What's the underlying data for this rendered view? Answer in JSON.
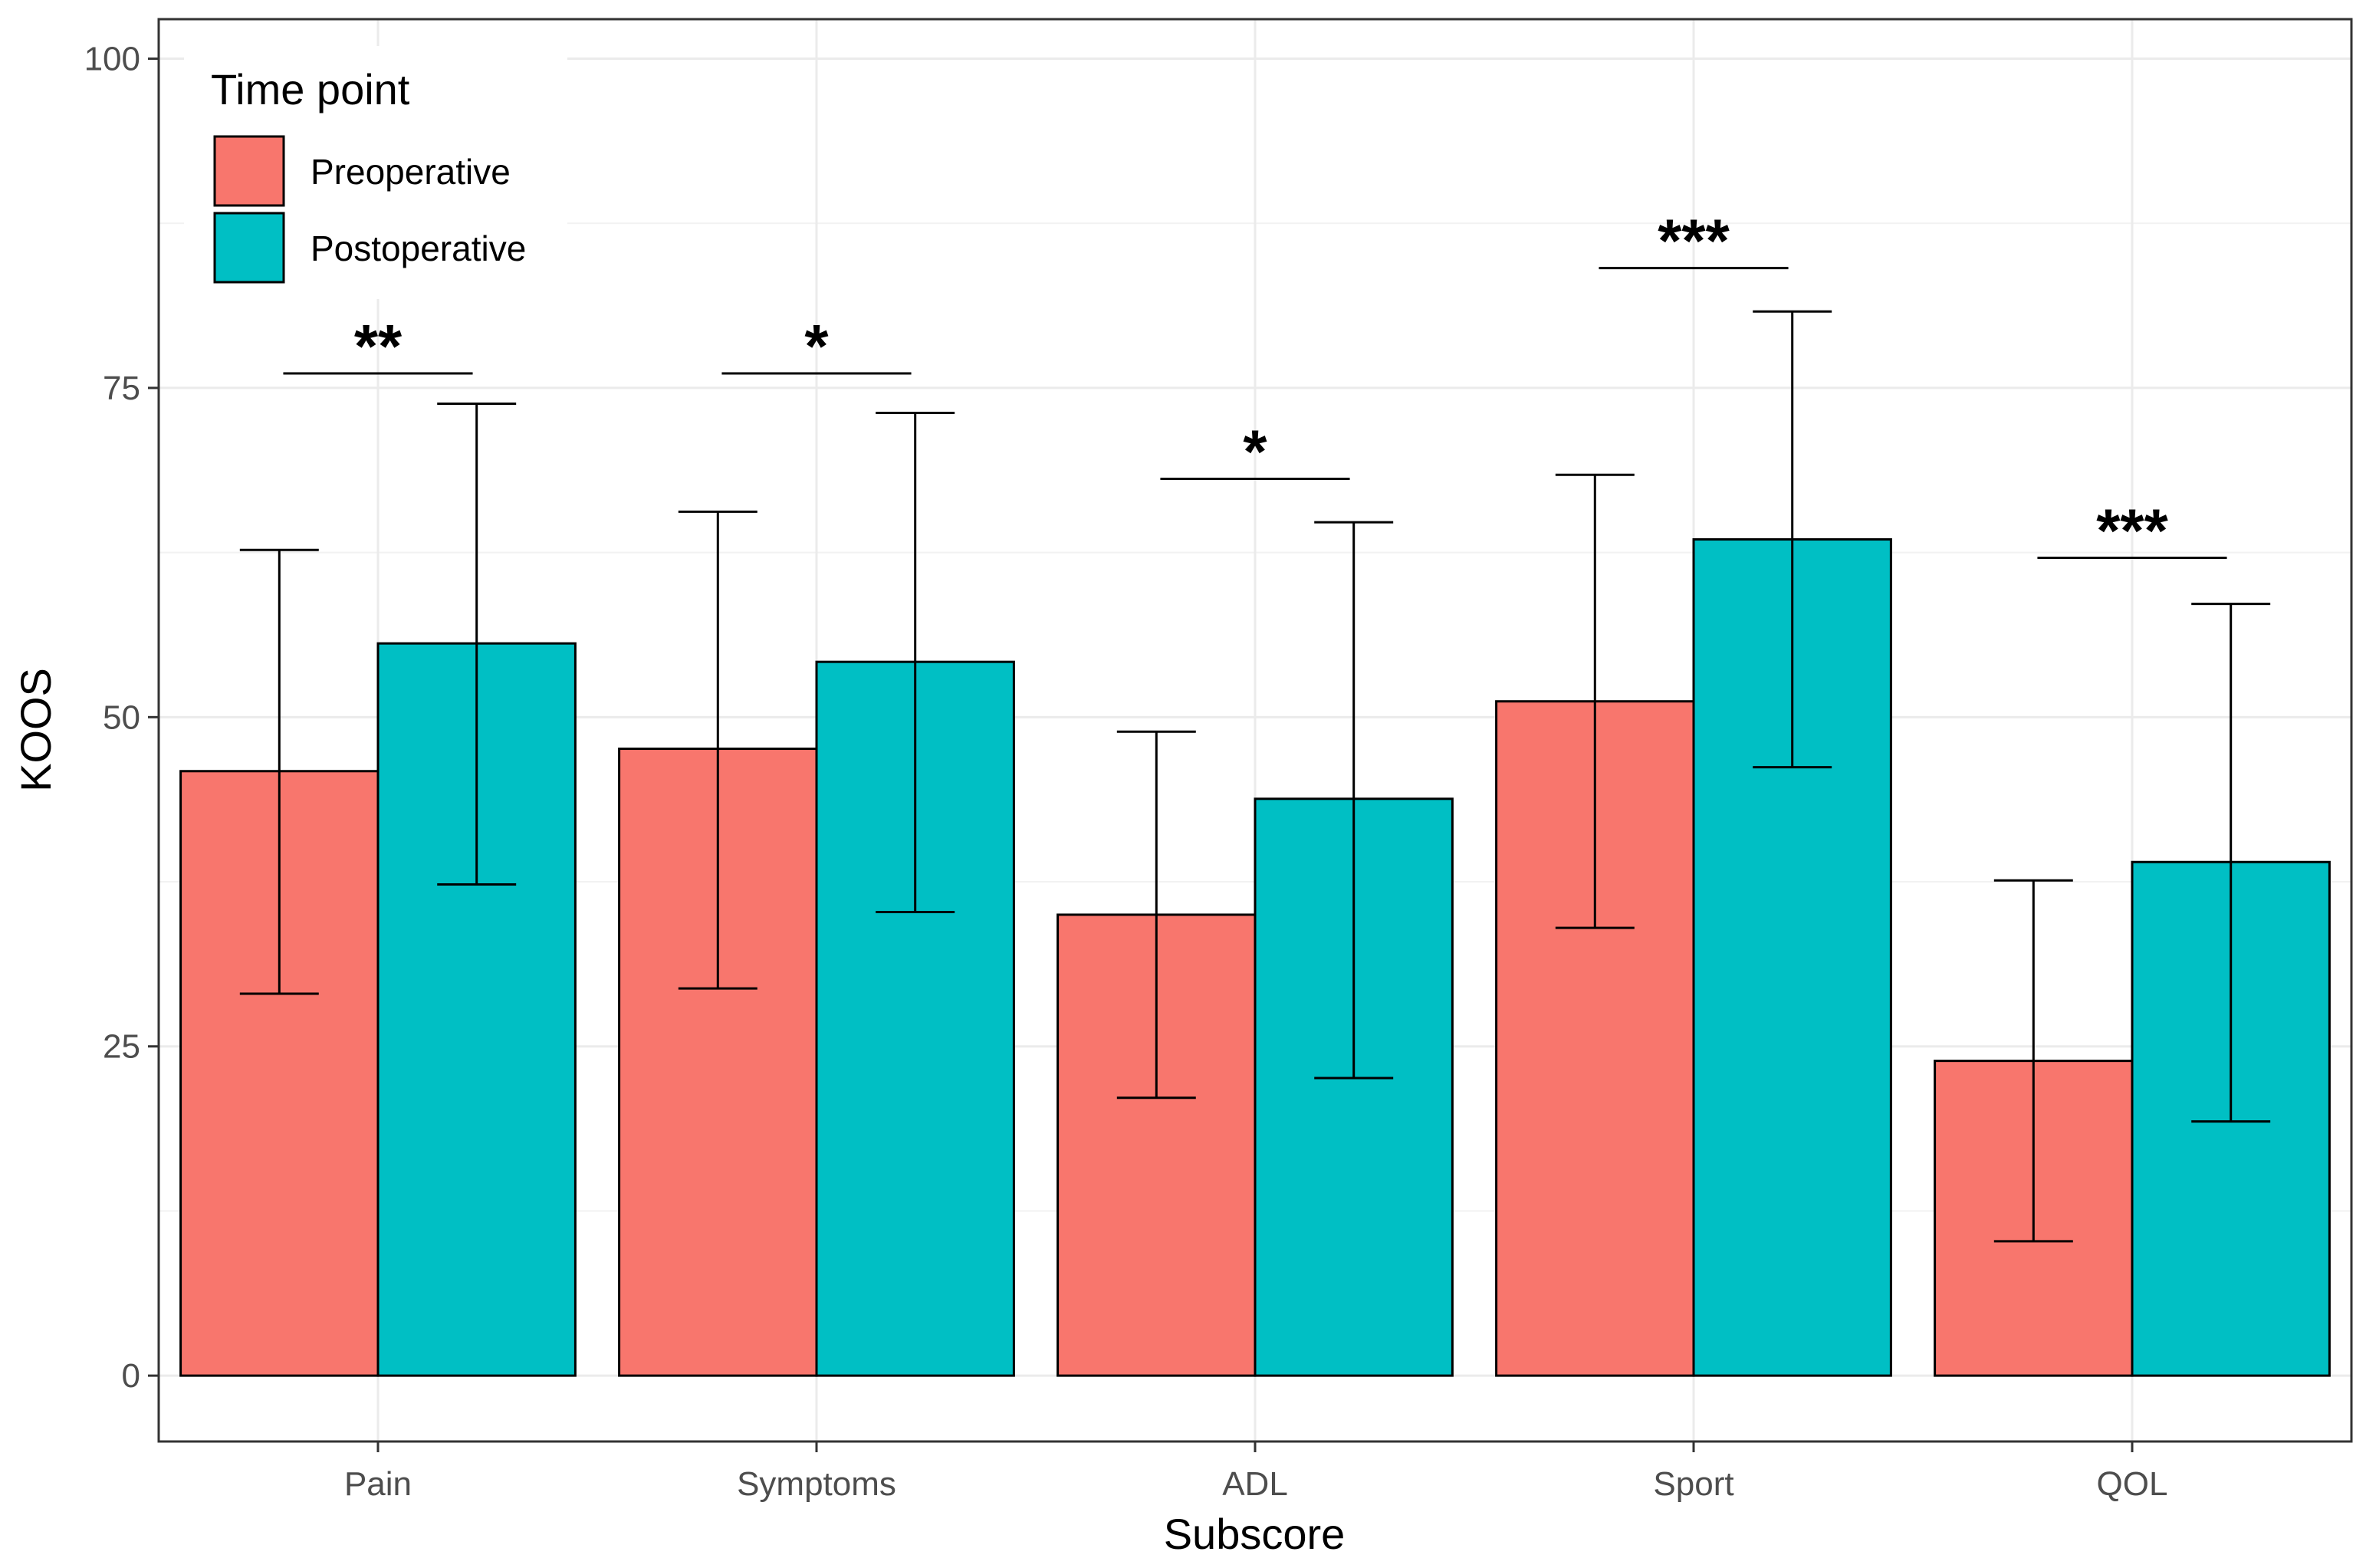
{
  "chart_data": {
    "type": "bar",
    "title": "",
    "xlabel": "Subscore",
    "ylabel": "KOOS",
    "ylim": [
      -5,
      103
    ],
    "yticks": [
      0,
      25,
      50,
      75,
      100
    ],
    "grid": true,
    "categories": [
      "Pain",
      "Symptoms",
      "ADL",
      "Sport",
      "QOL"
    ],
    "series": [
      {
        "name": "Preoperative",
        "color": "#f8766d",
        "values": [
          45.9,
          47.6,
          35.0,
          51.2,
          23.9
        ],
        "error_low": [
          29.0,
          29.4,
          21.1,
          34.0,
          10.2
        ],
        "error_high": [
          62.7,
          65.6,
          48.9,
          68.4,
          37.6
        ]
      },
      {
        "name": "Postoperative",
        "color": "#00bfc4",
        "values": [
          55.6,
          54.2,
          43.8,
          63.5,
          39.0
        ],
        "error_low": [
          37.3,
          35.2,
          22.6,
          46.2,
          19.3
        ],
        "error_high": [
          73.8,
          73.1,
          64.8,
          80.8,
          58.6
        ]
      }
    ],
    "significance": [
      {
        "category": "Pain",
        "label": "**",
        "y": 76.1
      },
      {
        "category": "Symptoms",
        "label": "*",
        "y": 76.1
      },
      {
        "category": "ADL",
        "label": "*",
        "y": 68.1
      },
      {
        "category": "Sport",
        "label": "***",
        "y": 84.1
      },
      {
        "category": "QOL",
        "label": "***",
        "y": 62.1
      }
    ],
    "legend": {
      "title": "Time point",
      "position": "top-left",
      "entries": [
        "Preoperative",
        "Postoperative"
      ]
    }
  }
}
